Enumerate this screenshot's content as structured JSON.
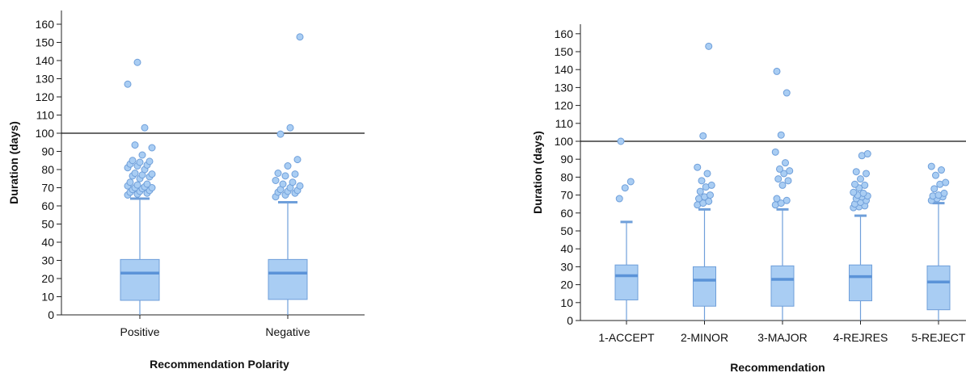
{
  "colors": {
    "box_fill": "#a9cdf3",
    "box_stroke": "#6f9fda",
    "median": "#5b93d8",
    "point_fill": "#a9cdf3",
    "point_stroke": "#6f9fda",
    "axis": "#222222",
    "reference_line": "#111111"
  },
  "chart_data": [
    {
      "type": "box",
      "xlabel": "Recommendation Polarity",
      "ylabel": "Duration (days)",
      "ylim": [
        0,
        165
      ],
      "yticks": [
        0,
        10,
        20,
        30,
        40,
        50,
        60,
        70,
        80,
        90,
        100,
        110,
        120,
        130,
        140,
        150,
        160
      ],
      "reference_line": 100,
      "grid": false,
      "categories": [
        "Positive",
        "Negative"
      ],
      "boxes": [
        {
          "category": "Positive",
          "whisker_low": 0,
          "q1": 8,
          "median": 23,
          "q3": 30.5,
          "whisker_high": 64,
          "outliers": [
            66,
            66.5,
            67,
            67.5,
            68,
            68.5,
            69,
            69.5,
            70,
            70,
            70.5,
            71,
            71.5,
            72,
            73,
            75,
            76,
            76.5,
            77,
            77.5,
            78,
            80,
            81,
            82,
            82.5,
            83,
            84,
            84.5,
            85,
            88,
            92,
            93.5,
            103,
            127,
            139
          ]
        },
        {
          "category": "Negative",
          "whisker_low": 0,
          "q1": 8.5,
          "median": 23,
          "q3": 30.5,
          "whisker_high": 62,
          "outliers": [
            65,
            66,
            67,
            67.5,
            68,
            68.5,
            69,
            70,
            71,
            72,
            73,
            74,
            76.5,
            77.5,
            78,
            82,
            85.5,
            99.5,
            103,
            153
          ]
        }
      ]
    },
    {
      "type": "box",
      "xlabel": "Recommendation",
      "ylabel": "Duration (days)",
      "ylim": [
        0,
        165
      ],
      "yticks": [
        0,
        10,
        20,
        30,
        40,
        50,
        60,
        70,
        80,
        90,
        100,
        110,
        120,
        130,
        140,
        150,
        160
      ],
      "reference_line": 100,
      "grid": false,
      "categories": [
        "1-ACCEPT",
        "2-MINOR",
        "3-MAJOR",
        "4-REJRES",
        "5-REJECT"
      ],
      "boxes": [
        {
          "category": "1-ACCEPT",
          "whisker_low": 0,
          "q1": 11.5,
          "median": 25,
          "q3": 31,
          "whisker_high": 55,
          "outliers": [
            68,
            74,
            77.5,
            100
          ]
        },
        {
          "category": "2-MINOR",
          "whisker_low": 0,
          "q1": 8,
          "median": 22.5,
          "q3": 30,
          "whisker_high": 62,
          "outliers": [
            64.5,
            65.5,
            66.5,
            68,
            69,
            70,
            72,
            74.5,
            75.5,
            78,
            82,
            85.5,
            103,
            153
          ]
        },
        {
          "category": "3-MAJOR",
          "whisker_low": 0,
          "q1": 8,
          "median": 23,
          "q3": 30.5,
          "whisker_high": 62,
          "outliers": [
            64.5,
            65.5,
            67,
            68,
            75.5,
            78,
            79,
            82,
            83.5,
            84.5,
            88,
            94,
            103.5,
            127,
            139
          ]
        },
        {
          "category": "4-REJRES",
          "whisker_low": 0,
          "q1": 11,
          "median": 24.5,
          "q3": 31,
          "whisker_high": 58.5,
          "outliers": [
            63,
            63.5,
            64,
            65,
            66,
            67,
            68,
            69,
            69.5,
            70,
            71,
            71.5,
            74,
            75.5,
            76,
            79,
            82,
            83,
            92,
            93
          ]
        },
        {
          "category": "5-REJECT",
          "whisker_low": 0,
          "q1": 6,
          "median": 21.5,
          "q3": 30.5,
          "whisker_high": 65.5,
          "outliers": [
            67,
            68,
            69,
            69.5,
            70,
            71,
            73.5,
            76,
            77,
            81,
            84,
            86
          ]
        }
      ]
    }
  ]
}
